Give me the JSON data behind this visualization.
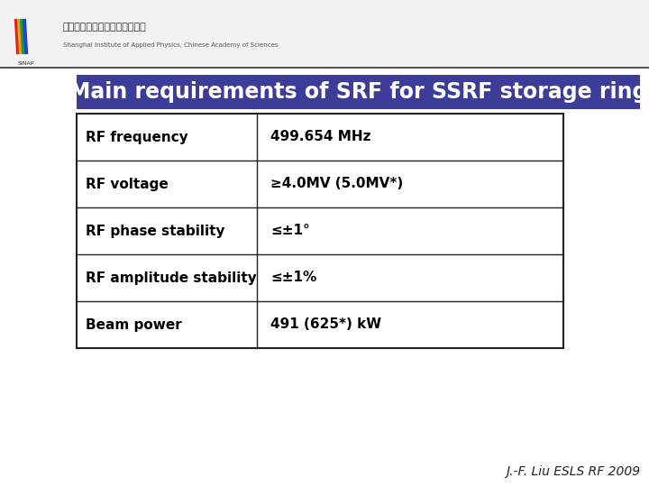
{
  "title": "Main requirements of SRF for SSRF storage ring",
  "title_bg_color": "#3d3d99",
  "title_text_color": "#ffffff",
  "table_rows": [
    [
      "RF frequency",
      "499.654 MHz"
    ],
    [
      "RF voltage",
      "≥4.0MV (5.0MV*)"
    ],
    [
      "RF phase stability",
      "≤±1°"
    ],
    [
      "RF amplitude stability",
      "≤±1%"
    ],
    [
      "Beam power",
      "491 (625*) kW"
    ]
  ],
  "footer": "J.-F. Liu ESLS RF 2009",
  "bg_color": "#ffffff",
  "header_bg_color": "#f2f2f2",
  "header_line_color": "#555555",
  "table_border_color": "#222222",
  "cell_text_color": "#000000",
  "cell_fontsize": 11,
  "title_fontsize": 17,
  "footer_fontsize": 10,
  "logo_text_cn": "中国科学院上海应用物理研究所",
  "logo_text_en": "Shanghai Institute of Applied Physics, Chinese Academy of Sciences",
  "logo_fontsize_cn": 8,
  "logo_fontsize_en": 5
}
